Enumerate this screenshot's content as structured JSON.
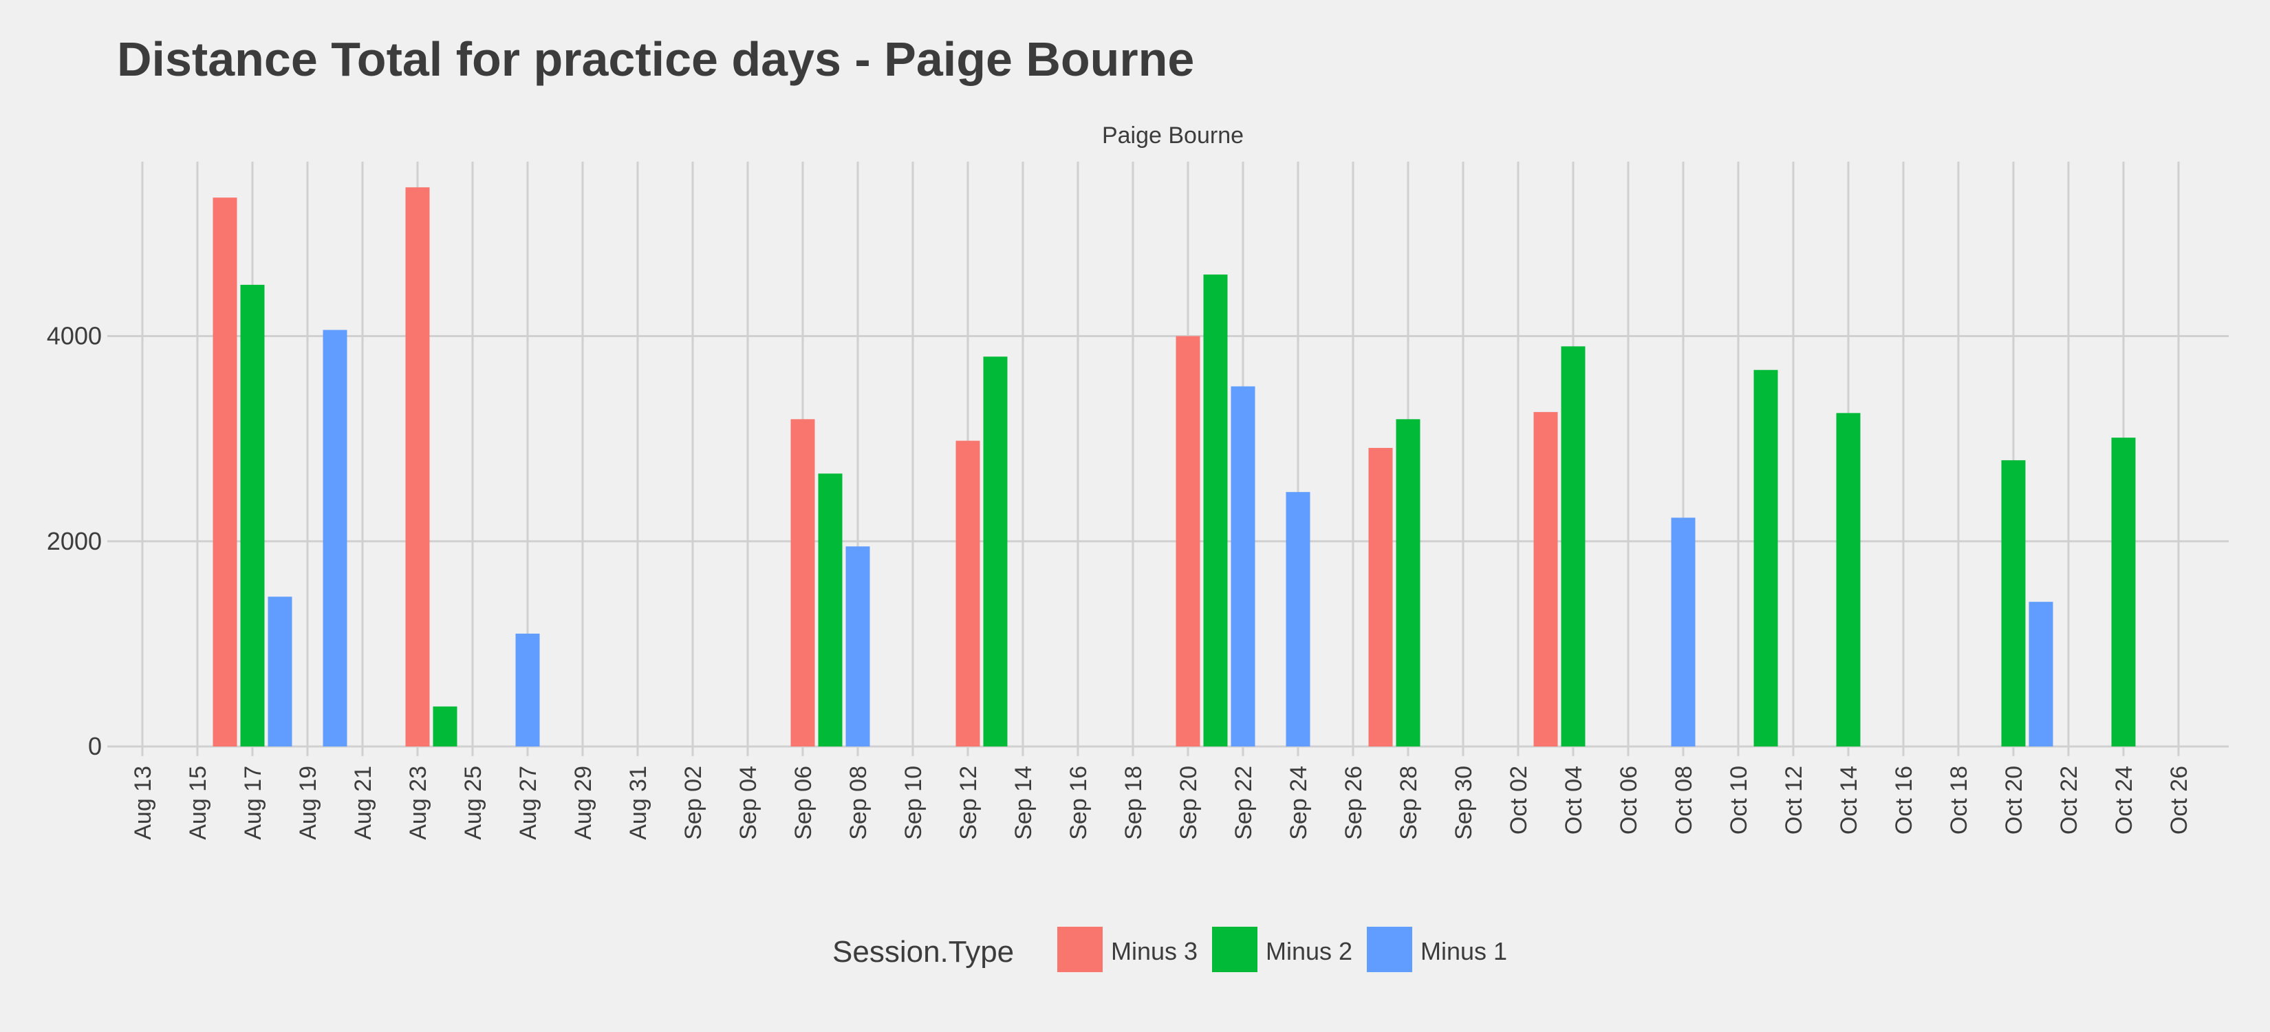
{
  "chart_data": {
    "type": "bar",
    "title": "Distance Total for practice days -  Paige Bourne",
    "facet_label": "Paige Bourne",
    "xlabel": "",
    "ylabel": "",
    "ylim": [
      0,
      5700
    ],
    "y_ticks": [
      0,
      2000,
      4000
    ],
    "grid": true,
    "legend_position": "bottom",
    "legend_title": "Session.Type",
    "x_ticks": [
      "Aug 13",
      "Aug 15",
      "Aug 17",
      "Aug 19",
      "Aug 21",
      "Aug 23",
      "Aug 25",
      "Aug 27",
      "Aug 29",
      "Aug 31",
      "Sep 02",
      "Sep 04",
      "Sep 06",
      "Sep 08",
      "Sep 10",
      "Sep 12",
      "Sep 14",
      "Sep 16",
      "Sep 18",
      "Sep 20",
      "Sep 22",
      "Sep 24",
      "Sep 26",
      "Sep 28",
      "Sep 30",
      "Oct 02",
      "Oct 04",
      "Oct 06",
      "Oct 08",
      "Oct 10",
      "Oct 12",
      "Oct 14",
      "Oct 16",
      "Oct 18",
      "Oct 20",
      "Oct 22",
      "Oct 24",
      "Oct 26"
    ],
    "series": [
      {
        "name": "Minus 3",
        "color": "#F8766D",
        "points": [
          {
            "x": "2019-08-16",
            "y": 5350
          },
          {
            "x": "2019-08-23",
            "y": 5450
          },
          {
            "x": "2019-09-06",
            "y": 3190
          },
          {
            "x": "2019-09-12",
            "y": 2980
          },
          {
            "x": "2019-09-20",
            "y": 4000
          },
          {
            "x": "2019-09-27",
            "y": 2910
          },
          {
            "x": "2019-10-03",
            "y": 3260
          }
        ]
      },
      {
        "name": "Minus 2",
        "color": "#00BA38",
        "points": [
          {
            "x": "2019-08-17",
            "y": 4500
          },
          {
            "x": "2019-08-24",
            "y": 390
          },
          {
            "x": "2019-09-07",
            "y": 2660
          },
          {
            "x": "2019-09-13",
            "y": 3800
          },
          {
            "x": "2019-09-21",
            "y": 4600
          },
          {
            "x": "2019-09-28",
            "y": 3190
          },
          {
            "x": "2019-10-04",
            "y": 3900
          },
          {
            "x": "2019-10-11",
            "y": 3670
          },
          {
            "x": "2019-10-14",
            "y": 3250
          },
          {
            "x": "2019-10-20",
            "y": 2790
          },
          {
            "x": "2019-10-24",
            "y": 3010
          }
        ]
      },
      {
        "name": "Minus 1",
        "color": "#619CFF",
        "points": [
          {
            "x": "2019-08-18",
            "y": 1460
          },
          {
            "x": "2019-08-20",
            "y": 4060
          },
          {
            "x": "2019-08-27",
            "y": 1100
          },
          {
            "x": "2019-09-08",
            "y": 1950
          },
          {
            "x": "2019-09-22",
            "y": 3510
          },
          {
            "x": "2019-09-24",
            "y": 2480
          },
          {
            "x": "2019-10-08",
            "y": 2230
          },
          {
            "x": "2019-10-21",
            "y": 1410
          }
        ]
      }
    ]
  }
}
